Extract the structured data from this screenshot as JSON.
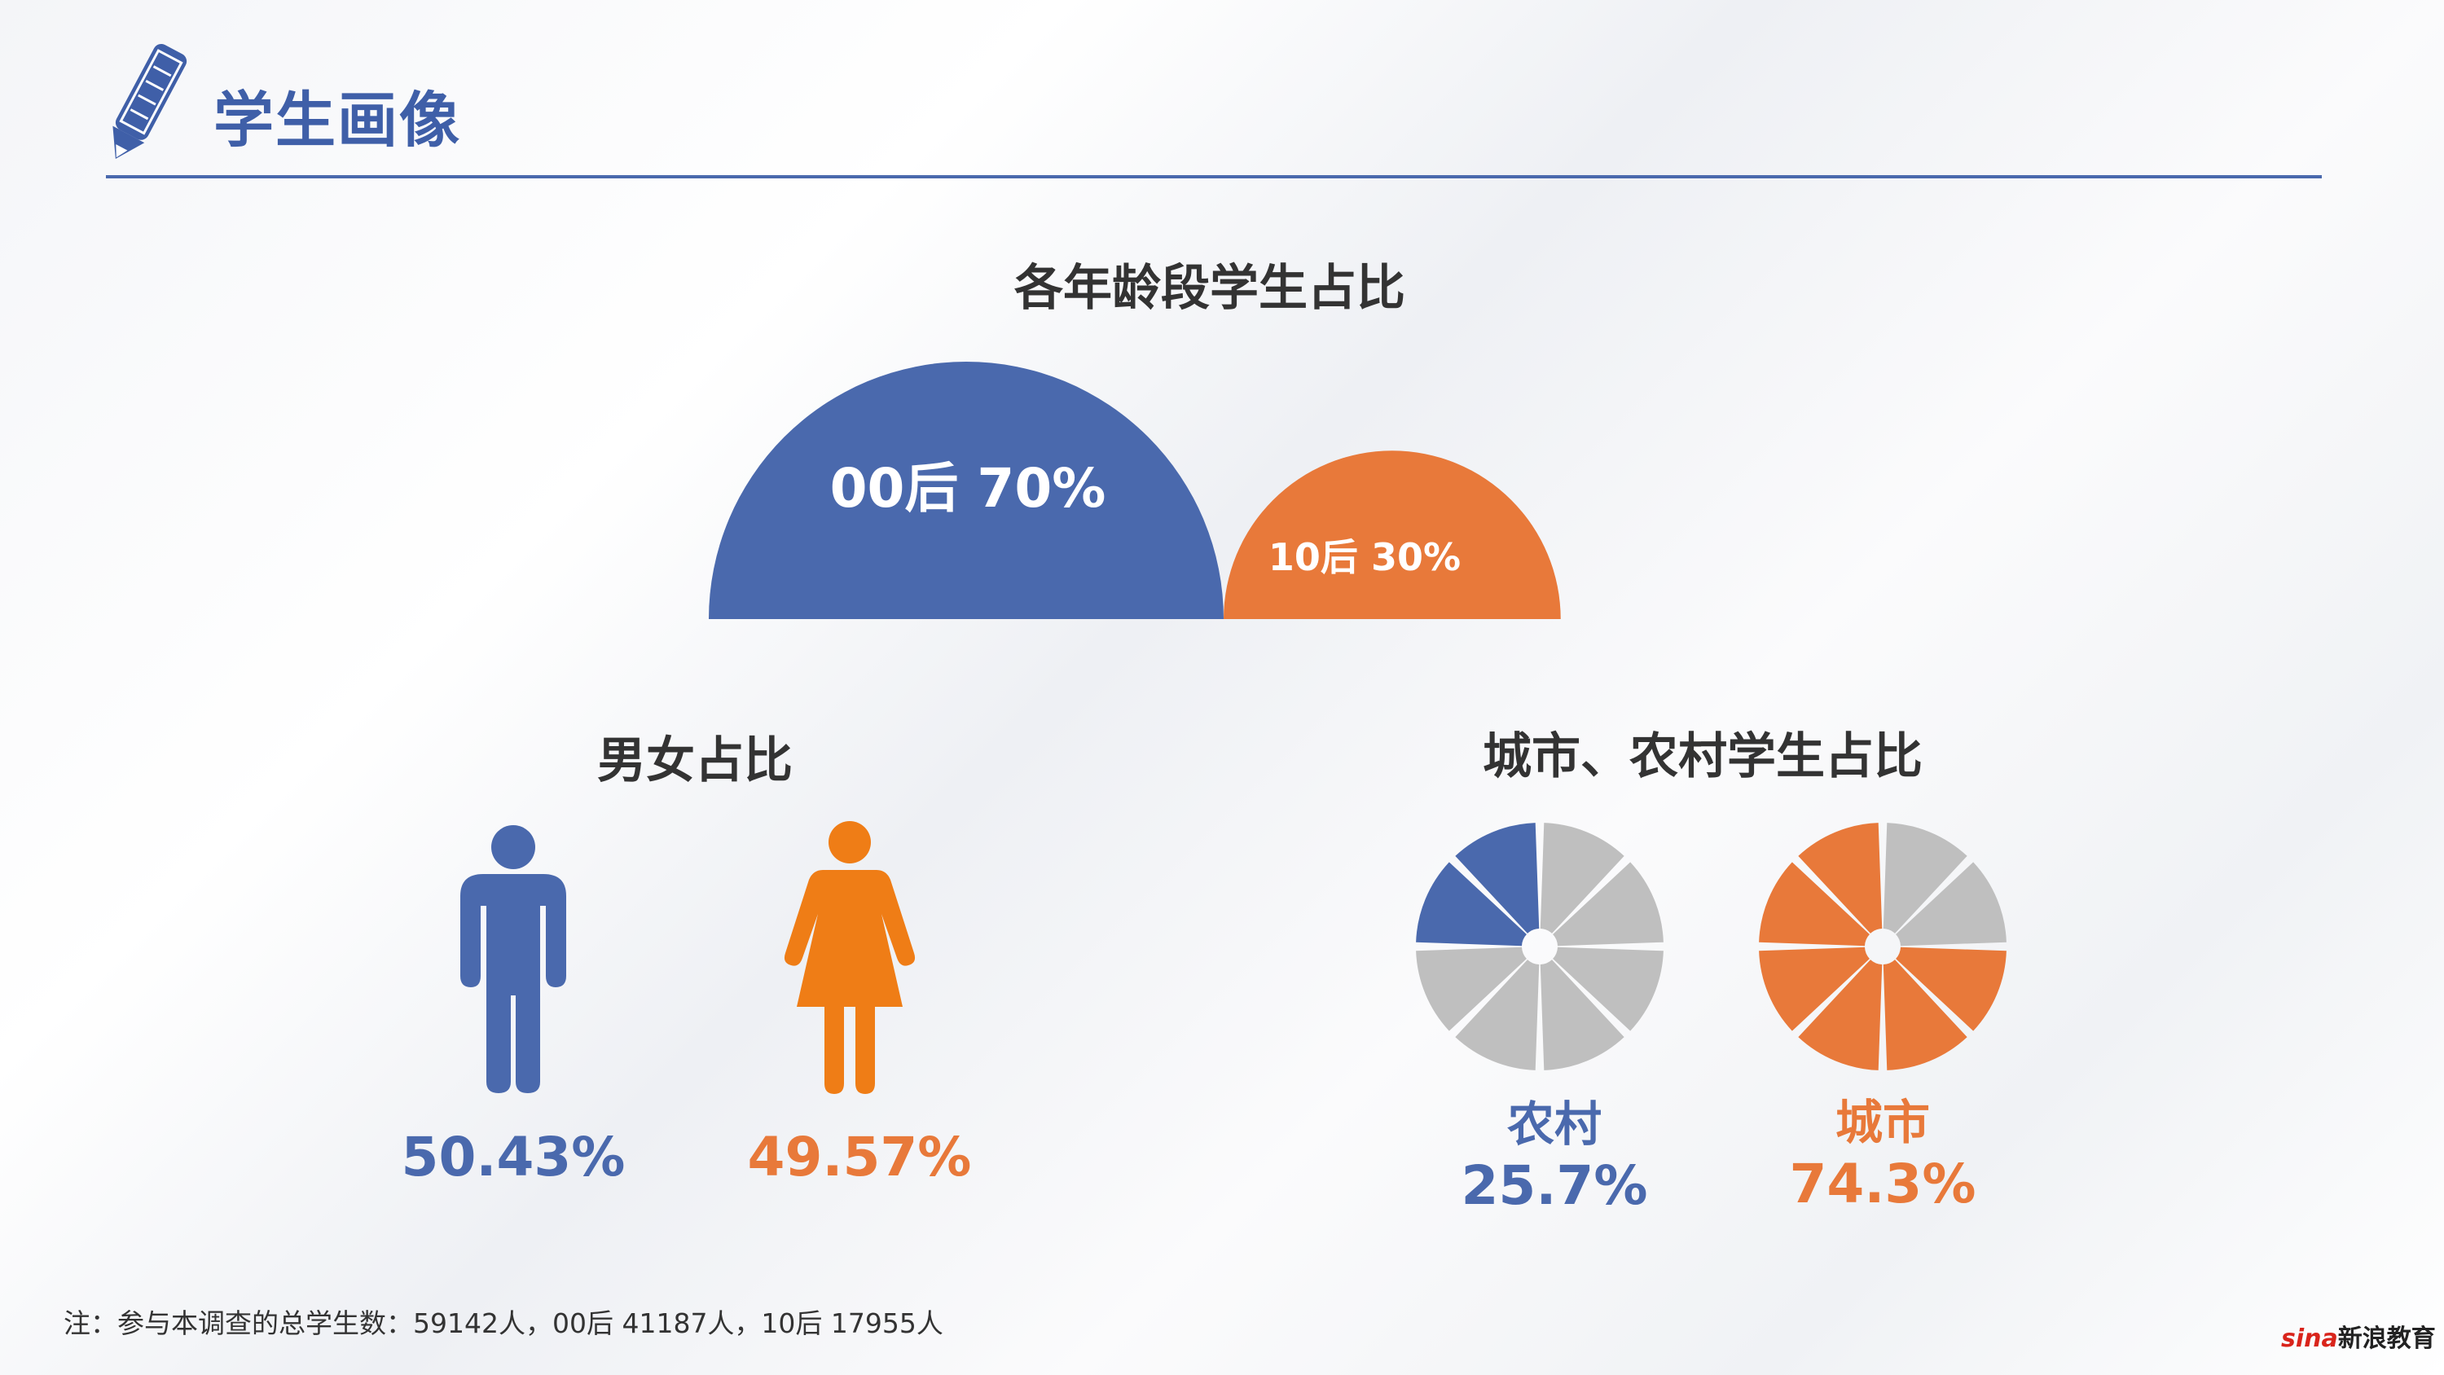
{
  "header": {
    "title": "学生画像"
  },
  "chart_data": [
    {
      "type": "pie",
      "title": "各年龄段学生占比",
      "slices": [
        {
          "label": "00后 70%",
          "value": 70,
          "color": "#4a69ad"
        },
        {
          "label": "10后 30%",
          "value": 30,
          "color": "#e8793a"
        }
      ]
    },
    {
      "type": "bar",
      "title": "男女占比",
      "categories": [
        "男",
        "女"
      ],
      "values": [
        50.43,
        49.57
      ],
      "labels": [
        "50.43%",
        "49.57%"
      ],
      "colors": [
        "#4a69ad",
        "#ef7d16"
      ]
    },
    {
      "type": "pie",
      "title": "城市、农村学生占比",
      "slices": [
        {
          "label": "农村",
          "value": 25.7,
          "text": "25.7%",
          "color": "#4a69ad"
        },
        {
          "label": "城市",
          "value": 74.3,
          "text": "74.3%",
          "color": "#e8793a"
        }
      ]
    }
  ],
  "note": "注：参与本调查的总学生数：59142人，00后  41187人，10后  17955人",
  "brand": {
    "mark": "sina",
    "name": "新浪教育"
  }
}
